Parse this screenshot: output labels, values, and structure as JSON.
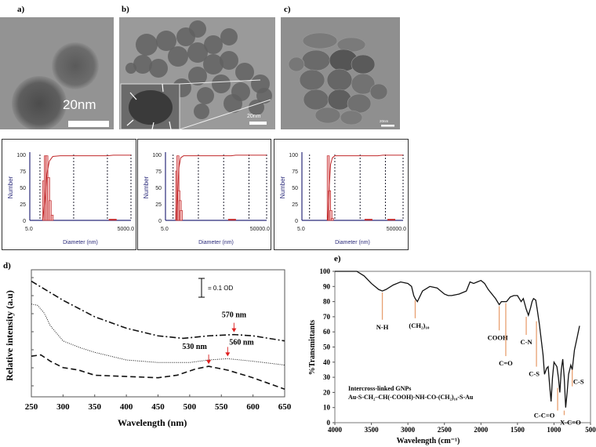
{
  "panels": {
    "a": "a)",
    "b": "b)",
    "c": "c)",
    "d": "d)",
    "e": "e)"
  },
  "micrographs": [
    {
      "scale_label": "20nm"
    },
    {
      "scale_label": "20nm"
    },
    {
      "scale_label": "20nm"
    }
  ],
  "colors": {
    "hist_red": "#c0282a",
    "hist_fill": "#f2b8b8",
    "axis_blue": "#2a2a7a",
    "arrow_red": "#e02020",
    "annot_orange": "#e8a070"
  },
  "chart_data": [
    {
      "type": "bar",
      "title": "",
      "xlabel": "Diameter (nm)",
      "ylabel": "Number",
      "xscale": "log",
      "xlim": [
        5.0,
        5000.0
      ],
      "ylim": [
        0,
        100
      ],
      "xtick_labels": [
        "5.0",
        "5000.0"
      ],
      "ytick_labels": [
        "0",
        "25",
        "50",
        "75",
        "100"
      ],
      "bins": [
        13,
        14.5,
        16,
        18,
        20,
        23
      ],
      "values": [
        60,
        98,
        98,
        65,
        30,
        8
      ],
      "cumulative": [
        [
          12,
          0
        ],
        [
          14,
          30
        ],
        [
          16,
          70
        ],
        [
          19,
          90
        ],
        [
          24,
          97
        ],
        [
          40,
          98
        ],
        [
          1000,
          98
        ],
        [
          1500,
          99
        ],
        [
          5000,
          99
        ]
      ],
      "minor_bins": [
        [
          1100,
          1
        ]
      ]
    },
    {
      "type": "bar",
      "title": "",
      "xlabel": "Diameter (nm)",
      "ylabel": "Number",
      "xscale": "log",
      "xlim": [
        5.0,
        50000.0
      ],
      "ylim": [
        0,
        100
      ],
      "xtick_labels": [
        "5.0",
        "50000.0"
      ],
      "ytick_labels": [
        "0",
        "25",
        "50",
        "75",
        "100"
      ],
      "bins": [
        14,
        15.5,
        17,
        19,
        21
      ],
      "values": [
        75,
        98,
        45,
        30,
        15
      ],
      "cumulative": [
        [
          13,
          0
        ],
        [
          15,
          40
        ],
        [
          17,
          80
        ],
        [
          20,
          95
        ],
        [
          26,
          98
        ],
        [
          2000,
          98
        ],
        [
          3000,
          99
        ],
        [
          50000,
          99
        ]
      ],
      "minor_bins": [
        [
          1500,
          1
        ]
      ]
    },
    {
      "type": "bar",
      "title": "",
      "xlabel": "Diameter (nm)",
      "ylabel": "Number",
      "xscale": "log",
      "xlim": [
        5.0,
        50000.0
      ],
      "ylim": [
        0,
        100
      ],
      "xtick_labels": [
        "5.0",
        "50000.0"
      ],
      "ytick_labels": [
        "0",
        "25",
        "50",
        "75",
        "100"
      ],
      "bins": [
        55,
        62,
        70,
        80
      ],
      "values": [
        98,
        45,
        15,
        3
      ],
      "cumulative": [
        [
          52,
          0
        ],
        [
          60,
          50
        ],
        [
          68,
          85
        ],
        [
          80,
          95
        ],
        [
          100,
          98
        ],
        [
          5000,
          98
        ],
        [
          8000,
          99
        ],
        [
          50000,
          99
        ]
      ],
      "minor_bins": [
        [
          1500,
          1
        ],
        [
          12000,
          1
        ]
      ]
    },
    {
      "type": "line",
      "title": "",
      "xlabel": "Wavelength (nm)",
      "ylabel": "Relative intensity (a.u)",
      "xlim": [
        250,
        650
      ],
      "ylim": [
        0,
        1
      ],
      "xticks": [
        250,
        300,
        350,
        400,
        450,
        500,
        550,
        600,
        650
      ],
      "scale_bar_label": "= 0.1 OD",
      "series": [
        {
          "name": "dash-dot",
          "style": "dashdot",
          "peak_label": "570 nm",
          "peak": 570,
          "x": [
            250,
            270,
            300,
            350,
            400,
            450,
            490,
            530,
            570,
            600,
            650
          ],
          "y": [
            0.91,
            0.85,
            0.76,
            0.63,
            0.54,
            0.48,
            0.46,
            0.48,
            0.49,
            0.48,
            0.44
          ]
        },
        {
          "name": "dotted",
          "style": "dotted",
          "peak_label": "560 nm",
          "peak": 560,
          "x": [
            250,
            260,
            270,
            280,
            300,
            325,
            350,
            400,
            450,
            500,
            530,
            560,
            600,
            650
          ],
          "y": [
            0.73,
            0.72,
            0.66,
            0.56,
            0.44,
            0.39,
            0.35,
            0.29,
            0.27,
            0.27,
            0.29,
            0.3,
            0.28,
            0.25
          ]
        },
        {
          "name": "dashed",
          "style": "dashed",
          "peak_label": "530 nm",
          "peak": 530,
          "x": [
            250,
            265,
            280,
            300,
            325,
            350,
            400,
            450,
            480,
            510,
            530,
            560,
            600,
            650
          ],
          "y": [
            0.32,
            0.33,
            0.28,
            0.23,
            0.21,
            0.17,
            0.16,
            0.15,
            0.17,
            0.22,
            0.24,
            0.21,
            0.15,
            0.06
          ]
        }
      ]
    },
    {
      "type": "line",
      "title": "",
      "xlabel": "Wavelength (cm⁻¹)",
      "ylabel": "%Transmittants",
      "xlim": [
        4000,
        500
      ],
      "ylim": [
        0,
        100
      ],
      "xticks": [
        4000,
        3500,
        3000,
        2500,
        2000,
        1500,
        1000,
        500
      ],
      "yticks": [
        0,
        10,
        20,
        30,
        40,
        50,
        60,
        70,
        80,
        90,
        100
      ],
      "legend_lines": [
        "Intercross-linked  GNPs",
        "Au-S-CH₂–CH(-COOH)-NH-CO-(CH₂)₁₀-S-Au"
      ],
      "series": [
        {
          "name": "FTIR",
          "x": [
            4000,
            3700,
            3600,
            3500,
            3400,
            3350,
            3300,
            3200,
            3100,
            3000,
            2950,
            2920,
            2900,
            2870,
            2850,
            2800,
            2700,
            2600,
            2500,
            2450,
            2400,
            2300,
            2200,
            2150,
            2100,
            2050,
            2000,
            1950,
            1900,
            1800,
            1750,
            1720,
            1650,
            1600,
            1550,
            1500,
            1450,
            1420,
            1380,
            1350,
            1320,
            1300,
            1280,
            1250,
            1230,
            1200,
            1150,
            1130,
            1100,
            1080,
            1060,
            1040,
            1020,
            1000,
            960,
            940,
            920,
            900,
            880,
            860,
            840,
            820,
            800,
            770,
            750,
            720,
            680,
            650
          ],
          "y": [
            100,
            100,
            97,
            92,
            88,
            87,
            88,
            91,
            93,
            92,
            90,
            84,
            82,
            80,
            82,
            87,
            90,
            89,
            85,
            84,
            84,
            85,
            87,
            93,
            92,
            93,
            94,
            92,
            88,
            82,
            78,
            80,
            80,
            83,
            84,
            84,
            80,
            82,
            75,
            71,
            76,
            80,
            82,
            81,
            75,
            65,
            45,
            32,
            36,
            37,
            25,
            14,
            30,
            40,
            37,
            30,
            20,
            35,
            42,
            30,
            10,
            20,
            32,
            38,
            35,
            48,
            57,
            64
          ]
        }
      ],
      "annotations": [
        {
          "label": "N-H",
          "x": 3350,
          "y_from": 86,
          "y_to": 68
        },
        {
          "label": "(CH₂)₁₀",
          "x": 2900,
          "y_from": 81,
          "y_to": 69
        },
        {
          "label": "COOH",
          "x": 1750,
          "y_from": 77,
          "y_to": 61
        },
        {
          "label": "C=O",
          "x": 1660,
          "y_from": 79,
          "y_to": 44
        },
        {
          "label": "C-N",
          "x": 1380,
          "y_from": 70,
          "y_to": 58
        },
        {
          "label": "C-S",
          "x": 1240,
          "y_from": 67,
          "y_to": 37
        },
        {
          "label": "C-C=O",
          "x": 950,
          "y_from": 23,
          "y_to": 8
        },
        {
          "label": "X-C=O",
          "x": 860,
          "y_from": 8,
          "y_to": 5
        },
        {
          "label": "C-S",
          "x": 750,
          "y_from": 35,
          "y_to": 24
        }
      ]
    }
  ]
}
